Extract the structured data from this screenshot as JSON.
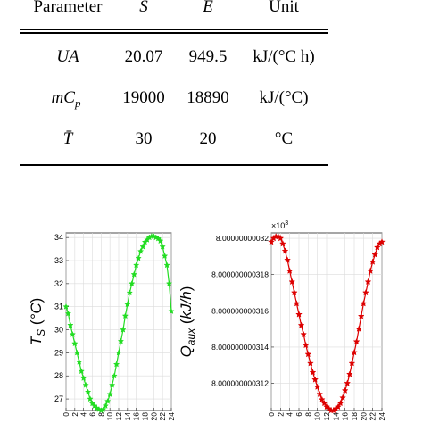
{
  "table": {
    "headers": [
      "Parameter",
      "S",
      "E",
      "Unit"
    ],
    "rows": [
      {
        "param": "UA",
        "s": "20.07",
        "e": "949.5",
        "unit": "kJ/(°C h)"
      },
      {
        "param": "mC",
        "param_sub": "p",
        "s": "19000",
        "e": "18890",
        "unit": "kJ/(°C)"
      },
      {
        "param": "T̄",
        "s": "30",
        "e": "20",
        "unit": "°C"
      }
    ]
  },
  "chart_data": [
    {
      "type": "line",
      "ylabel": "T_S (°C)",
      "ylabel_main": "T",
      "ylabel_sub": "S",
      "ylabel_unit_open": " (",
      "ylabel_unit": "°C",
      "ylabel_unit_close": ")",
      "xlim": [
        0,
        24
      ],
      "ylim": [
        26.5,
        34.2
      ],
      "yticks": [
        "27",
        "28",
        "29",
        "30",
        "31",
        "32",
        "33",
        "34"
      ],
      "xticks": [
        "0",
        "2",
        "4",
        "6",
        "8",
        "10",
        "12",
        "14",
        "16",
        "18",
        "20",
        "22",
        "24"
      ],
      "grid": true,
      "series": [
        {
          "color": "#22dd22",
          "marker": "star",
          "x": [
            0,
            0.5,
            1,
            1.5,
            2,
            2.5,
            3,
            3.5,
            4,
            4.5,
            5,
            5.5,
            6,
            6.5,
            7,
            7.5,
            8,
            8.5,
            9,
            9.5,
            10,
            10.5,
            11,
            11.5,
            12,
            12.5,
            13,
            13.5,
            14,
            14.5,
            15,
            15.5,
            16,
            16.5,
            17,
            17.5,
            18,
            18.5,
            19,
            19.5,
            20,
            20.5,
            21,
            21.5,
            22,
            22.5,
            23,
            23.5,
            24
          ],
          "y": [
            31.0,
            30.7,
            30.2,
            29.8,
            29.4,
            29.0,
            28.6,
            28.2,
            27.9,
            27.6,
            27.3,
            27.0,
            26.8,
            26.7,
            26.6,
            26.55,
            26.5,
            26.55,
            26.7,
            26.9,
            27.2,
            27.6,
            28.0,
            28.5,
            29.0,
            29.5,
            30.0,
            30.6,
            31.1,
            31.6,
            32.0,
            32.4,
            32.8,
            33.1,
            33.4,
            33.6,
            33.8,
            33.9,
            34.0,
            34.05,
            34.05,
            34.0,
            33.95,
            33.85,
            33.6,
            33.2,
            32.8,
            32.0,
            30.8
          ]
        }
      ]
    },
    {
      "type": "line",
      "ylabel": "Q_aux (kJ/h)",
      "ylabel_main": "Q",
      "ylabel_sub": "aux",
      "ylabel_unit_open": " (",
      "ylabel_unit": "kJ/h",
      "ylabel_unit_close": ")",
      "exponent_base": "×10",
      "exponent_power": "3",
      "xlim": [
        0,
        24
      ],
      "ylim": [
        8.0000000003105,
        8.0000000003203
      ],
      "yticks": [
        "8.000000000312",
        "8.000000000314",
        "8.000000000316",
        "8.000000000318",
        "8.00000000032"
      ],
      "xticks": [
        "0",
        "2",
        "4",
        "6",
        "8",
        "10",
        "12",
        "14",
        "16",
        "18",
        "20",
        "22",
        "24"
      ],
      "grid": true,
      "series": [
        {
          "color": "#dd0000",
          "marker": "star",
          "x": [
            0,
            0.5,
            1,
            1.5,
            2,
            2.5,
            3,
            3.5,
            4,
            4.5,
            5,
            5.5,
            6,
            6.5,
            7,
            7.5,
            8,
            8.5,
            9,
            9.5,
            10,
            10.5,
            11,
            11.5,
            12,
            12.5,
            13,
            13.5,
            14,
            14.5,
            15,
            15.5,
            16,
            16.5,
            17,
            17.5,
            18,
            18.5,
            19,
            19.5,
            20,
            20.5,
            21,
            21.5,
            22,
            22.5,
            23,
            23.5,
            24
          ],
          "y": [
            8.0000000003198,
            8.00000000032,
            8.0000000003201,
            8.0000000003201,
            8.00000000032,
            8.0000000003197,
            8.0000000003193,
            8.0000000003188,
            8.0000000003182,
            8.0000000003176,
            8.000000000317,
            8.0000000003164,
            8.0000000003158,
            8.0000000003152,
            8.0000000003147,
            8.0000000003141,
            8.0000000003136,
            8.0000000003131,
            8.0000000003126,
            8.0000000003122,
            8.0000000003118,
            8.0000000003114,
            8.0000000003111,
            8.0000000003109,
            8.0000000003107,
            8.0000000003106,
            8.0000000003105,
            8.0000000003105,
            8.0000000003106,
            8.0000000003107,
            8.0000000003109,
            8.0000000003112,
            8.0000000003116,
            8.000000000312,
            8.0000000003125,
            8.0000000003131,
            8.0000000003137,
            8.0000000003143,
            8.000000000315,
            8.0000000003157,
            8.0000000003164,
            8.000000000317,
            8.0000000003176,
            8.0000000003182,
            8.0000000003187,
            8.0000000003191,
            8.0000000003195,
            8.0000000003197,
            8.0000000003198
          ]
        }
      ]
    }
  ]
}
